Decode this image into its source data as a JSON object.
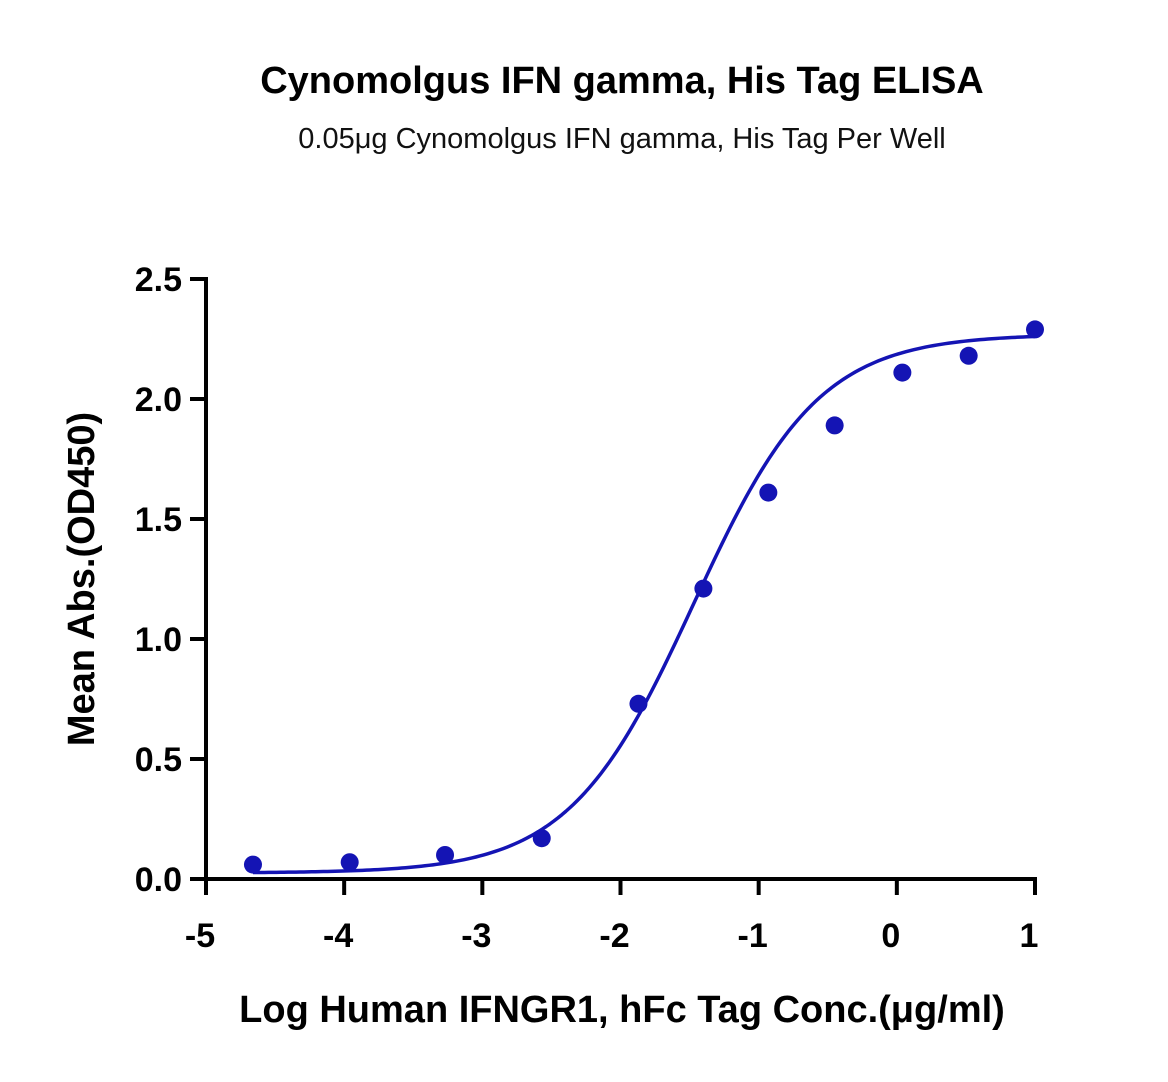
{
  "chart_data": {
    "type": "scatter",
    "title": "Cynomolgus IFN gamma, His Tag ELISA",
    "subtitle": "0.05μg Cynomolgus IFN gamma, His Tag Per Well",
    "xlabel": "Log Human IFNGR1, hFc Tag Conc.(μg/ml)",
    "ylabel": "Mean Abs.(OD450)",
    "xlim": [
      -5,
      1
    ],
    "ylim": [
      0,
      2.5
    ],
    "x_ticks": [
      -5,
      -4,
      -3,
      -2,
      -1,
      0,
      1
    ],
    "x_tick_labels": [
      "-5",
      "-4",
      "-3",
      "-2",
      "-1",
      "0",
      "1"
    ],
    "y_ticks": [
      0,
      0.5,
      1.0,
      1.5,
      2.0,
      2.5
    ],
    "y_tick_labels": [
      "0.0",
      "0.5",
      "1.0",
      "1.5",
      "2.0",
      "2.5"
    ],
    "grid": false,
    "legend": "none",
    "series": [
      {
        "x": [
          -4.66,
          -3.96,
          -3.27,
          -2.57,
          -1.87,
          -1.4,
          -0.93,
          -0.45,
          0.04,
          0.52,
          1.0
        ],
        "y": [
          0.06,
          0.07,
          0.1,
          0.17,
          0.73,
          1.21,
          1.61,
          1.89,
          2.11,
          2.18,
          2.29
        ],
        "color": "#1414b4"
      }
    ],
    "fit_curve": {
      "model": "4PL",
      "bottom": 0.025,
      "top": 2.27,
      "log_ec50": -1.47,
      "hill_slope": 0.96,
      "x_range": [
        -4.66,
        1.0
      ],
      "color": "#1414b4"
    }
  }
}
